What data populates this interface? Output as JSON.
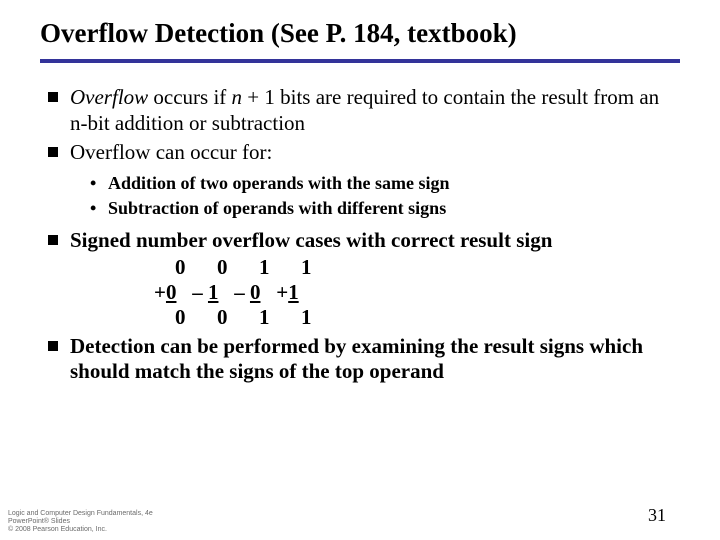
{
  "title": "Overflow Detection (See P. 184, textbook)",
  "bullets": {
    "b1_pre": "Overflow",
    "b1_mid": " occurs if ",
    "b1_n": "n",
    "b1_post": " + 1 bits are required to contain the result from an n-bit addition or subtraction",
    "b2": "Overflow can occur for:",
    "b2a": "Addition of two operands with the same sign",
    "b2b": "Subtraction of operands with different signs",
    "b3": "Signed number overflow cases with correct result sign",
    "b4": "Detection can be performed by examining the result signs which should match the signs of the top operand"
  },
  "signtable": {
    "row1": "    0      0      1      1",
    "r2a": "+",
    "r2b": "0",
    "r2c": "   – ",
    "r2d": "1",
    "r2e": "   – ",
    "r2f": "0",
    "r2g": "   +",
    "r2h": "1",
    "row3": "    0      0      1      1"
  },
  "footer": {
    "l1": "Logic and Computer Design Fundamentals, 4e",
    "l2": "PowerPoint® Slides",
    "l3": "© 2008 Pearson Education, Inc."
  },
  "page": "31",
  "colors": {
    "rule": "#333399",
    "text": "#000000",
    "footer": "#6b6b6b",
    "bg": "#ffffff"
  },
  "fonts": {
    "body_family": "Times New Roman",
    "title_size_pt": 20,
    "body_size_pt": 16,
    "sub_size_pt": 13
  }
}
